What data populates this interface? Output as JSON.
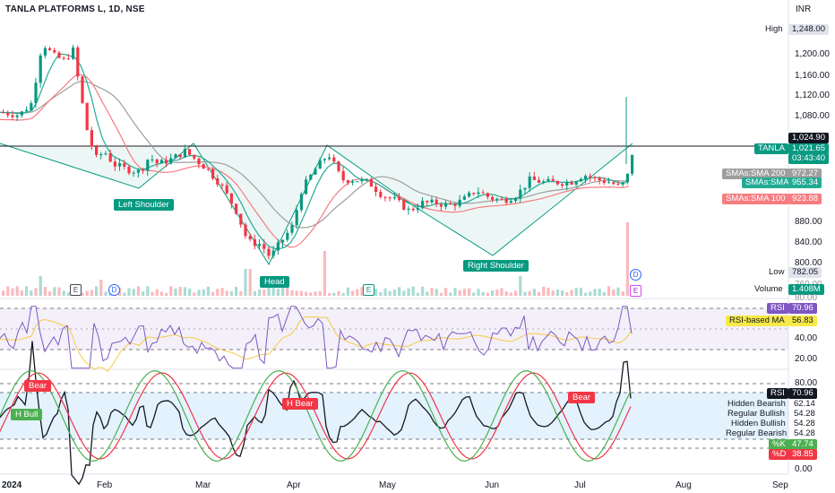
{
  "header": {
    "title": "TANLA PLATFORMS L, 1D, NSE",
    "currency": "INR"
  },
  "price_axis": {
    "ticks": [
      "1,200.00",
      "1,160.00",
      "1,120.00",
      "1,080.00",
      "880.00",
      "840.00",
      "800.00"
    ],
    "high_label": "High",
    "high_value": "1,248.00",
    "low_label": "Low",
    "low_value": "782.05",
    "level_value": "1,024.90",
    "symbol_label": "TANLA",
    "symbol_price": "1,021.65",
    "countdown": "03:43:40",
    "sma200_label": "SMAs:SMA 200",
    "sma200_value": "972.27",
    "sma50_label": "SMAs:SMA 50",
    "sma50_value": "955.34",
    "sma100_label": "SMAs:SMA 100",
    "sma100_value": "923.88",
    "volume_label": "Volume",
    "volume_value": "1.408M",
    "partial_tick": "760.00"
  },
  "rsi_axis": {
    "partial_top": "80.00",
    "rsi_label": "RSI",
    "rsi_value": "70.96",
    "ma_label": "RSI-based MA",
    "ma_value": "56.83",
    "ticks": [
      "40.00",
      "20.00"
    ]
  },
  "stoch_axis": {
    "ticks": [
      "80.00",
      "0.00"
    ],
    "rsi_label": "RSI",
    "rsi_value": "70.96",
    "hidden_bearish_label": "Hidden Bearish",
    "hidden_bearish_value": "62.14",
    "regular_bullish_label": "Regular Bullish",
    "regular_bullish_value": "54.28",
    "hidden_bullish_label": "Hidden Bullish",
    "hidden_bullish_value": "54.28",
    "regular_bearish_label": "Regular Bearish",
    "regular_bearish_value": "54.28",
    "k_label": "%K",
    "k_value": "47.74",
    "d_label": "%D",
    "d_value": "38.85"
  },
  "time_axis": [
    "2024",
    "Feb",
    "Mar",
    "Apr",
    "May",
    "Jun",
    "Jul",
    "Aug",
    "Sep"
  ],
  "annotations": {
    "left_shoulder": "Left Shoulder",
    "head": "Head",
    "right_shoulder": "Right Shoulder",
    "bear1": "Bear",
    "h_bull": "H Bull",
    "h_bear": "H Bear",
    "bear2": "Bear"
  },
  "event_badges": {
    "e": "E",
    "d": "D"
  },
  "colors": {
    "up": "#089981",
    "down": "#f23645",
    "sma200": "#9e9e9e",
    "sma50": "#22ab94",
    "sma100": "#f77c80",
    "rsi": "#7e57c2",
    "rsi_ma": "#f7c948",
    "stoch_k": "#4caf50",
    "stoch_d": "#f23645",
    "stoch_rsi": "#131722",
    "pattern": "#089981"
  },
  "chart_data": {
    "type": "candlestick",
    "symbol": "TANLA PLATFORMS L",
    "interval": "1D",
    "exchange": "NSE",
    "high": 1248.0,
    "low": 782.05,
    "last": 1021.65,
    "neckline": 1024.9,
    "sma": {
      "sma200": 972.27,
      "sma50": 955.34,
      "sma100": 923.88
    },
    "volume": "1.408M",
    "rsi": 70.96,
    "rsi_ma": 56.83,
    "stoch": {
      "k": 47.74,
      "d": 38.85
    },
    "pattern": [
      "Left Shoulder",
      "Head",
      "Right Shoulder"
    ]
  }
}
